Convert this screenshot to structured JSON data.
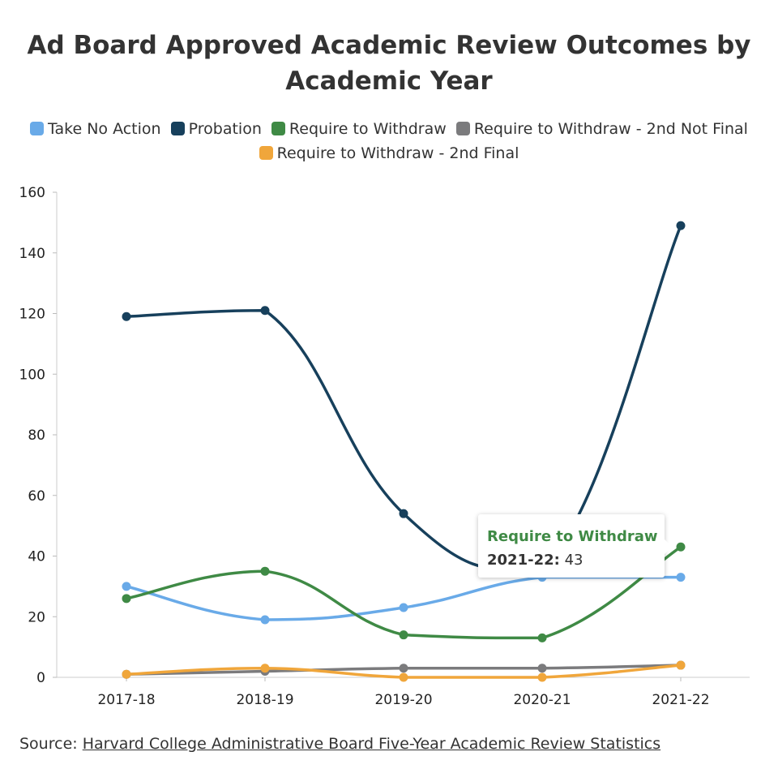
{
  "chart_data": {
    "type": "line",
    "title_line1": "Ad Board Approved Academic Review Outcomes by",
    "title_line2": "Academic Year",
    "categories": [
      "2017-18",
      "2018-19",
      "2019-20",
      "2020-21",
      "2021-22"
    ],
    "ylim": [
      0,
      160
    ],
    "yticks": [
      0,
      20,
      40,
      60,
      80,
      100,
      120,
      140,
      160
    ],
    "grid": false,
    "legend_position": "top",
    "series": [
      {
        "name": "Take No Action",
        "color": "#69aae8",
        "values": [
          30,
          19,
          23,
          33,
          33
        ]
      },
      {
        "name": "Probation",
        "color": "#17405c",
        "values": [
          119,
          121,
          54,
          35,
          149
        ]
      },
      {
        "name": "Require to Withdraw",
        "color": "#3f8a45",
        "values": [
          26,
          35,
          14,
          13,
          43
        ]
      },
      {
        "name": "Require to Withdraw - 2nd Not Final",
        "color": "#7b7b7d",
        "values": [
          1,
          2,
          3,
          3,
          4
        ]
      },
      {
        "name": "Require to Withdraw - 2nd Final",
        "color": "#f0a63b",
        "values": [
          1,
          3,
          0,
          0,
          4
        ]
      }
    ]
  },
  "tooltip": {
    "series": "Require to Withdraw",
    "color": "#3f8a45",
    "category": "2021-22:",
    "value": "43"
  },
  "source": {
    "prefix": "Source: ",
    "link_text": "Harvard College Administrative Board Five-Year Academic Review Statistics"
  }
}
